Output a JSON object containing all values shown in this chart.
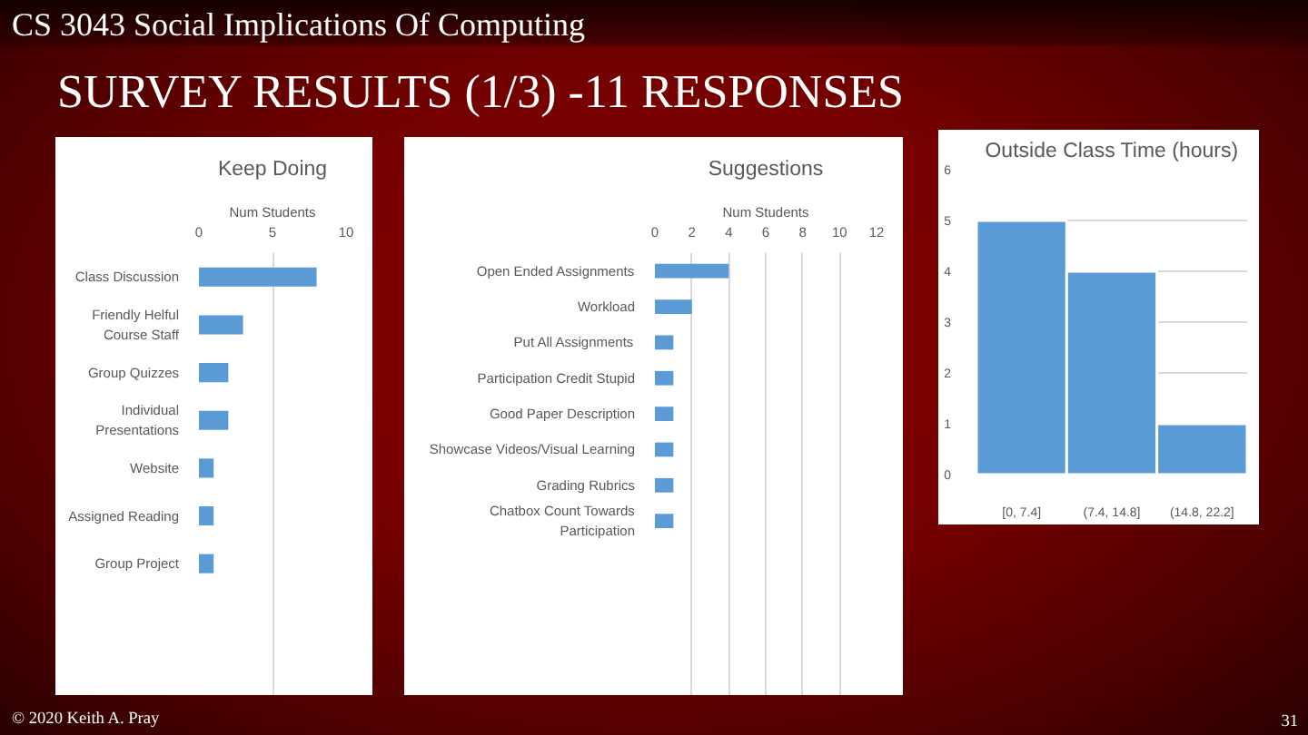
{
  "chart_data": [
    {
      "type": "other",
      "title": "SURVEY RESULTS (1/3) -11 RESPONSES",
      "subtitle": "CS 3043 Social Implications Of Computing",
      "annotations": [
        "© 2020 Keith A. Pray",
        "31"
      ]
    },
    {
      "type": "bar",
      "orientation": "horizontal",
      "title": "Keep Doing",
      "xlabel": "Num Students",
      "categories": [
        "Class Discussion",
        "Friendly Helful Course Staff",
        "Group Quizzes",
        "Individual Presentations",
        "Website",
        "Assigned Reading",
        "Group Project"
      ],
      "values": [
        8,
        3,
        2,
        2,
        1,
        1,
        1
      ],
      "color": "#5b9bd5",
      "xlim": [
        0,
        10
      ],
      "xticks": [
        0,
        5,
        10
      ],
      "grid": "x"
    },
    {
      "type": "bar",
      "orientation": "horizontal",
      "title": "Suggestions",
      "xlabel": "Num Students",
      "categories": [
        "Open Ended Assignments",
        "Workload",
        "Put All Assignments",
        "Participation Credit Stupid",
        "Good Paper Description",
        "Showcase Videos/Visual Learning",
        "Grading Rubrics",
        "Chatbox Count Towards Participation"
      ],
      "values": [
        4,
        2,
        1,
        1,
        1,
        1,
        1,
        1
      ],
      "color": "#5b9bd5",
      "xlim": [
        0,
        12
      ],
      "xticks": [
        0,
        2,
        4,
        6,
        8,
        10,
        12
      ],
      "grid": "x"
    },
    {
      "type": "bar",
      "title": "Outside Class Time (hours)",
      "categories": [
        "[0, 7.4]",
        "(7.4, 14.8]",
        "(14.8, 22.2]"
      ],
      "values": [
        5,
        4,
        1
      ],
      "color": "#5b9bd5",
      "ylim": [
        0,
        6
      ],
      "yticks": [
        0,
        1,
        2,
        3,
        4,
        5,
        6
      ],
      "grid": "y"
    }
  ]
}
